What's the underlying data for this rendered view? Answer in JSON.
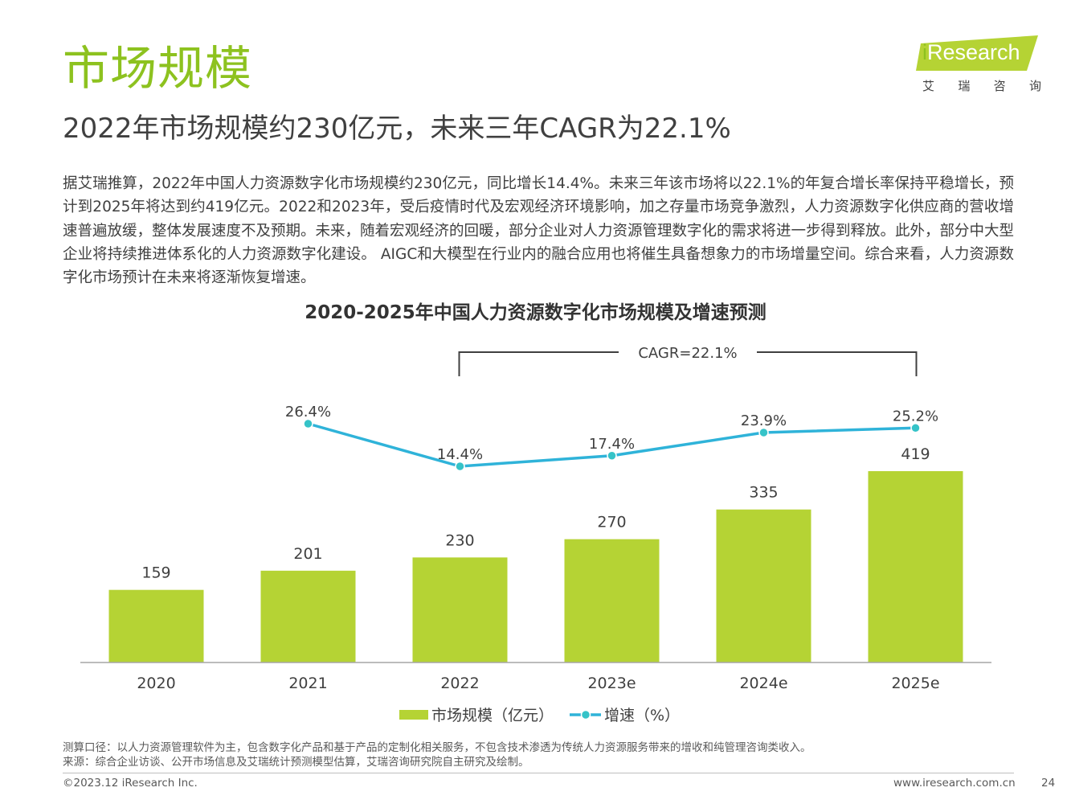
{
  "header": {
    "title": "市场规模",
    "subtitle": "2022年市场规模约230亿元，未来三年CAGR为22.1%"
  },
  "logo": {
    "brand_i": "i",
    "brand_rest": "Research",
    "subtitle_chars": [
      "艾",
      "瑞",
      "咨",
      "询"
    ],
    "color": "#b5d334"
  },
  "body_text": "据艾瑞推算，2022年中国人力资源数字化市场规模约230亿元，同比增长14.4%。未来三年该市场将以22.1%的年复合增长率保持平稳增长，预计到2025年将达到约419亿元。2022和2023年，受后疫情时代及宏观经济环境影响，加之存量市场竞争激烈，人力资源数字化供应商的营收增速普遍放缓，整体发展速度不及预期。未来，随着宏观经济的回暖，部分企业对人力资源管理数字化的需求将进一步得到释放。此外，部分中大型企业将持续推进体系化的人力资源数字化建设。 AIGC和大模型在行业内的融合应用也将催生具备想象力的市场增量空间。综合来看，人力资源数字化市场预计在未来将逐渐恢复增速。",
  "chart_data": {
    "type": "bar",
    "title": "2020-2025年中国人力资源数字化市场规模及增速预测",
    "categories": [
      "2020",
      "2021",
      "2022",
      "2023e",
      "2024e",
      "2025e"
    ],
    "series": [
      {
        "name": "市场规模（亿元）",
        "type": "bar",
        "values": [
          159,
          201,
          230,
          270,
          335,
          419
        ],
        "labels": [
          "159",
          "201",
          "230",
          "270",
          "335",
          "419"
        ],
        "color": "#b5d334",
        "ylim": [
          0,
          460
        ]
      },
      {
        "name": "增速（%）",
        "type": "line",
        "values": [
          null,
          26.4,
          14.4,
          17.4,
          23.9,
          25.2
        ],
        "labels": [
          "",
          "26.4%",
          "14.4%",
          "17.4%",
          "23.9%",
          "25.2%"
        ],
        "color": "#2fb3d9",
        "marker_color": "#35c3c8",
        "ylim": [
          10,
          30
        ]
      }
    ],
    "annotation": {
      "text": "CAGR=22.1%",
      "from_category": "2022",
      "to_category": "2025e"
    },
    "legend": "bottom-center",
    "grid": false
  },
  "notes": {
    "scope": "测算口径：以人力资源管理软件为主，包含数字化产品和基于产品的定制化相关服务，不包含技术渗透为传统人力资源服务带来的增收和纯管理咨询类收入。",
    "source": "来源：综合企业访谈、公开市场信息及艾瑞统计预测模型估算，艾瑞咨询研究院自主研究及绘制。"
  },
  "footer": {
    "copyright": "©2023.12 iResearch Inc.",
    "url": "www.iresearch.com.cn",
    "page": "24"
  }
}
